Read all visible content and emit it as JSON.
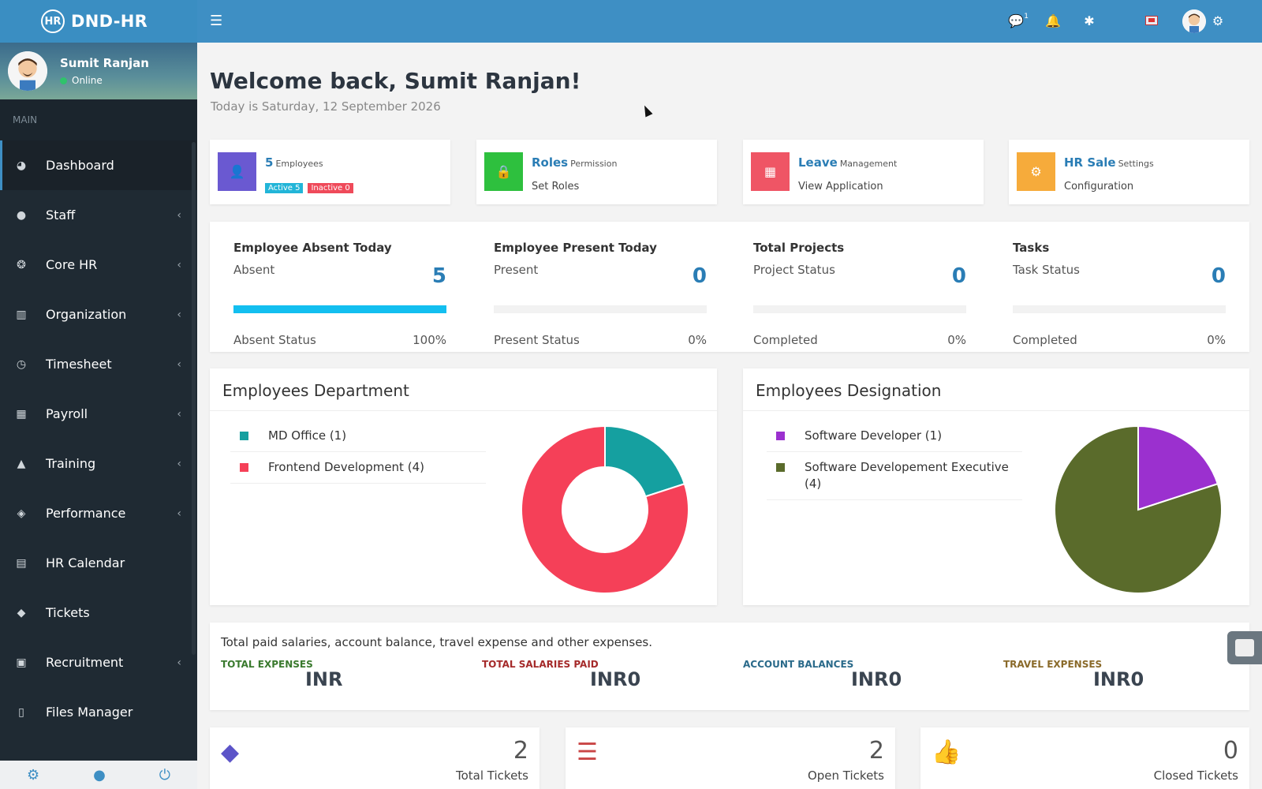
{
  "brand": {
    "logo": "HR",
    "name": "DND-HR"
  },
  "topbar": {
    "message_badge": "1"
  },
  "user": {
    "name": "Sumit Ranjan",
    "status": "Online"
  },
  "sidebar": {
    "section": "MAIN",
    "items": [
      {
        "label": "Dashboard",
        "icon": "dashboard-icon",
        "glyph": "◕",
        "chev": false,
        "active": true
      },
      {
        "label": "Staff",
        "icon": "user-icon",
        "glyph": "●",
        "chev": true
      },
      {
        "label": "Core HR",
        "icon": "life-ring-icon",
        "glyph": "❂",
        "chev": true
      },
      {
        "label": "Organization",
        "icon": "building-icon",
        "glyph": "▥",
        "chev": true
      },
      {
        "label": "Timesheet",
        "icon": "clock-icon",
        "glyph": "◷",
        "chev": true
      },
      {
        "label": "Payroll",
        "icon": "calculator-icon",
        "glyph": "▦",
        "chev": true
      },
      {
        "label": "Training",
        "icon": "graduation-cap-icon",
        "glyph": "▲",
        "chev": true
      },
      {
        "label": "Performance",
        "icon": "cube-icon",
        "glyph": "◈",
        "chev": true
      },
      {
        "label": "HR Calendar",
        "icon": "calendar-icon",
        "glyph": "▤",
        "chev": false
      },
      {
        "label": "Tickets",
        "icon": "ticket-icon",
        "glyph": "◆",
        "chev": false
      },
      {
        "label": "Recruitment",
        "icon": "newspaper-icon",
        "glyph": "▣",
        "chev": true
      },
      {
        "label": "Files Manager",
        "icon": "file-icon",
        "glyph": "▯",
        "chev": false
      }
    ],
    "chevron": "‹"
  },
  "main": {
    "welcome": "Welcome back, Sumit Ranjan!",
    "today": "Today is Saturday, 12 September 2026"
  },
  "quick_cards": [
    {
      "title": "5",
      "suffix": "Employees",
      "badge_active": "Active 5",
      "badge_inactive": "Inactive 0",
      "color": "#6a59d1",
      "icon": "user-icon"
    },
    {
      "title": "Roles",
      "suffix": "Permission",
      "sub": "Set Roles",
      "color": "#2ec03e",
      "icon": "lock-icon"
    },
    {
      "title": "Leave",
      "suffix": "Management",
      "sub": "View Application",
      "color": "#ef5565",
      "icon": "calendar-icon"
    },
    {
      "title": "HR Sale",
      "suffix": "Settings",
      "sub": "Configuration",
      "color": "#f6ab3b",
      "icon": "gear-icon"
    }
  ],
  "stats": [
    {
      "title": "Employee Absent Today",
      "sub": "Absent",
      "value": "5",
      "progress": 1.0,
      "foot": "Absent Status",
      "pct": "100%"
    },
    {
      "title": "Employee Present Today",
      "sub": "Present",
      "value": "0",
      "progress": 0,
      "foot": "Present Status",
      "pct": "0%"
    },
    {
      "title": "Total Projects",
      "sub": "Project Status",
      "value": "0",
      "progress": 0,
      "foot": "Completed",
      "pct": "0%"
    },
    {
      "title": "Tasks",
      "sub": "Task Status",
      "value": "0",
      "progress": 0,
      "foot": "Completed",
      "pct": "0%"
    }
  ],
  "department": {
    "title": "Employees Department",
    "items": [
      {
        "label": "MD Office (1)",
        "color": "#15a0a0",
        "value": 1
      },
      {
        "label": "Frontend Development (4)",
        "color": "#f54058",
        "value": 4
      }
    ]
  },
  "designation": {
    "title": "Employees Designation",
    "items": [
      {
        "label": "Software Developer (1)",
        "color": "#9b30cf",
        "value": 1
      },
      {
        "label": "Software Developement Executive (4)",
        "color": "#5a6b2b",
        "value": 4
      }
    ]
  },
  "expenses": {
    "title": "Total paid salaries, account balance, travel expense and other expenses.",
    "items": [
      {
        "label": "TOTAL EXPENSES",
        "value": "INR",
        "color": "#3a7a2e"
      },
      {
        "label": "TOTAL SALARIES PAID",
        "value": "INR0",
        "color": "#a52a2a"
      },
      {
        "label": "ACCOUNT BALANCES",
        "value": "INR0",
        "color": "#2a6a8a"
      },
      {
        "label": "TRAVEL EXPENSES",
        "value": "INR0",
        "color": "#8a6a2a"
      }
    ]
  },
  "tickets": [
    {
      "count": "2",
      "label": "Total Tickets",
      "icon": "ticket-icon",
      "color": "#5c54c8"
    },
    {
      "count": "2",
      "label": "Open Tickets",
      "icon": "server-icon",
      "color": "#c94545"
    },
    {
      "count": "0",
      "label": "Closed Tickets",
      "icon": "thumbs-up-icon",
      "color": "#3a8a3a"
    }
  ]
}
